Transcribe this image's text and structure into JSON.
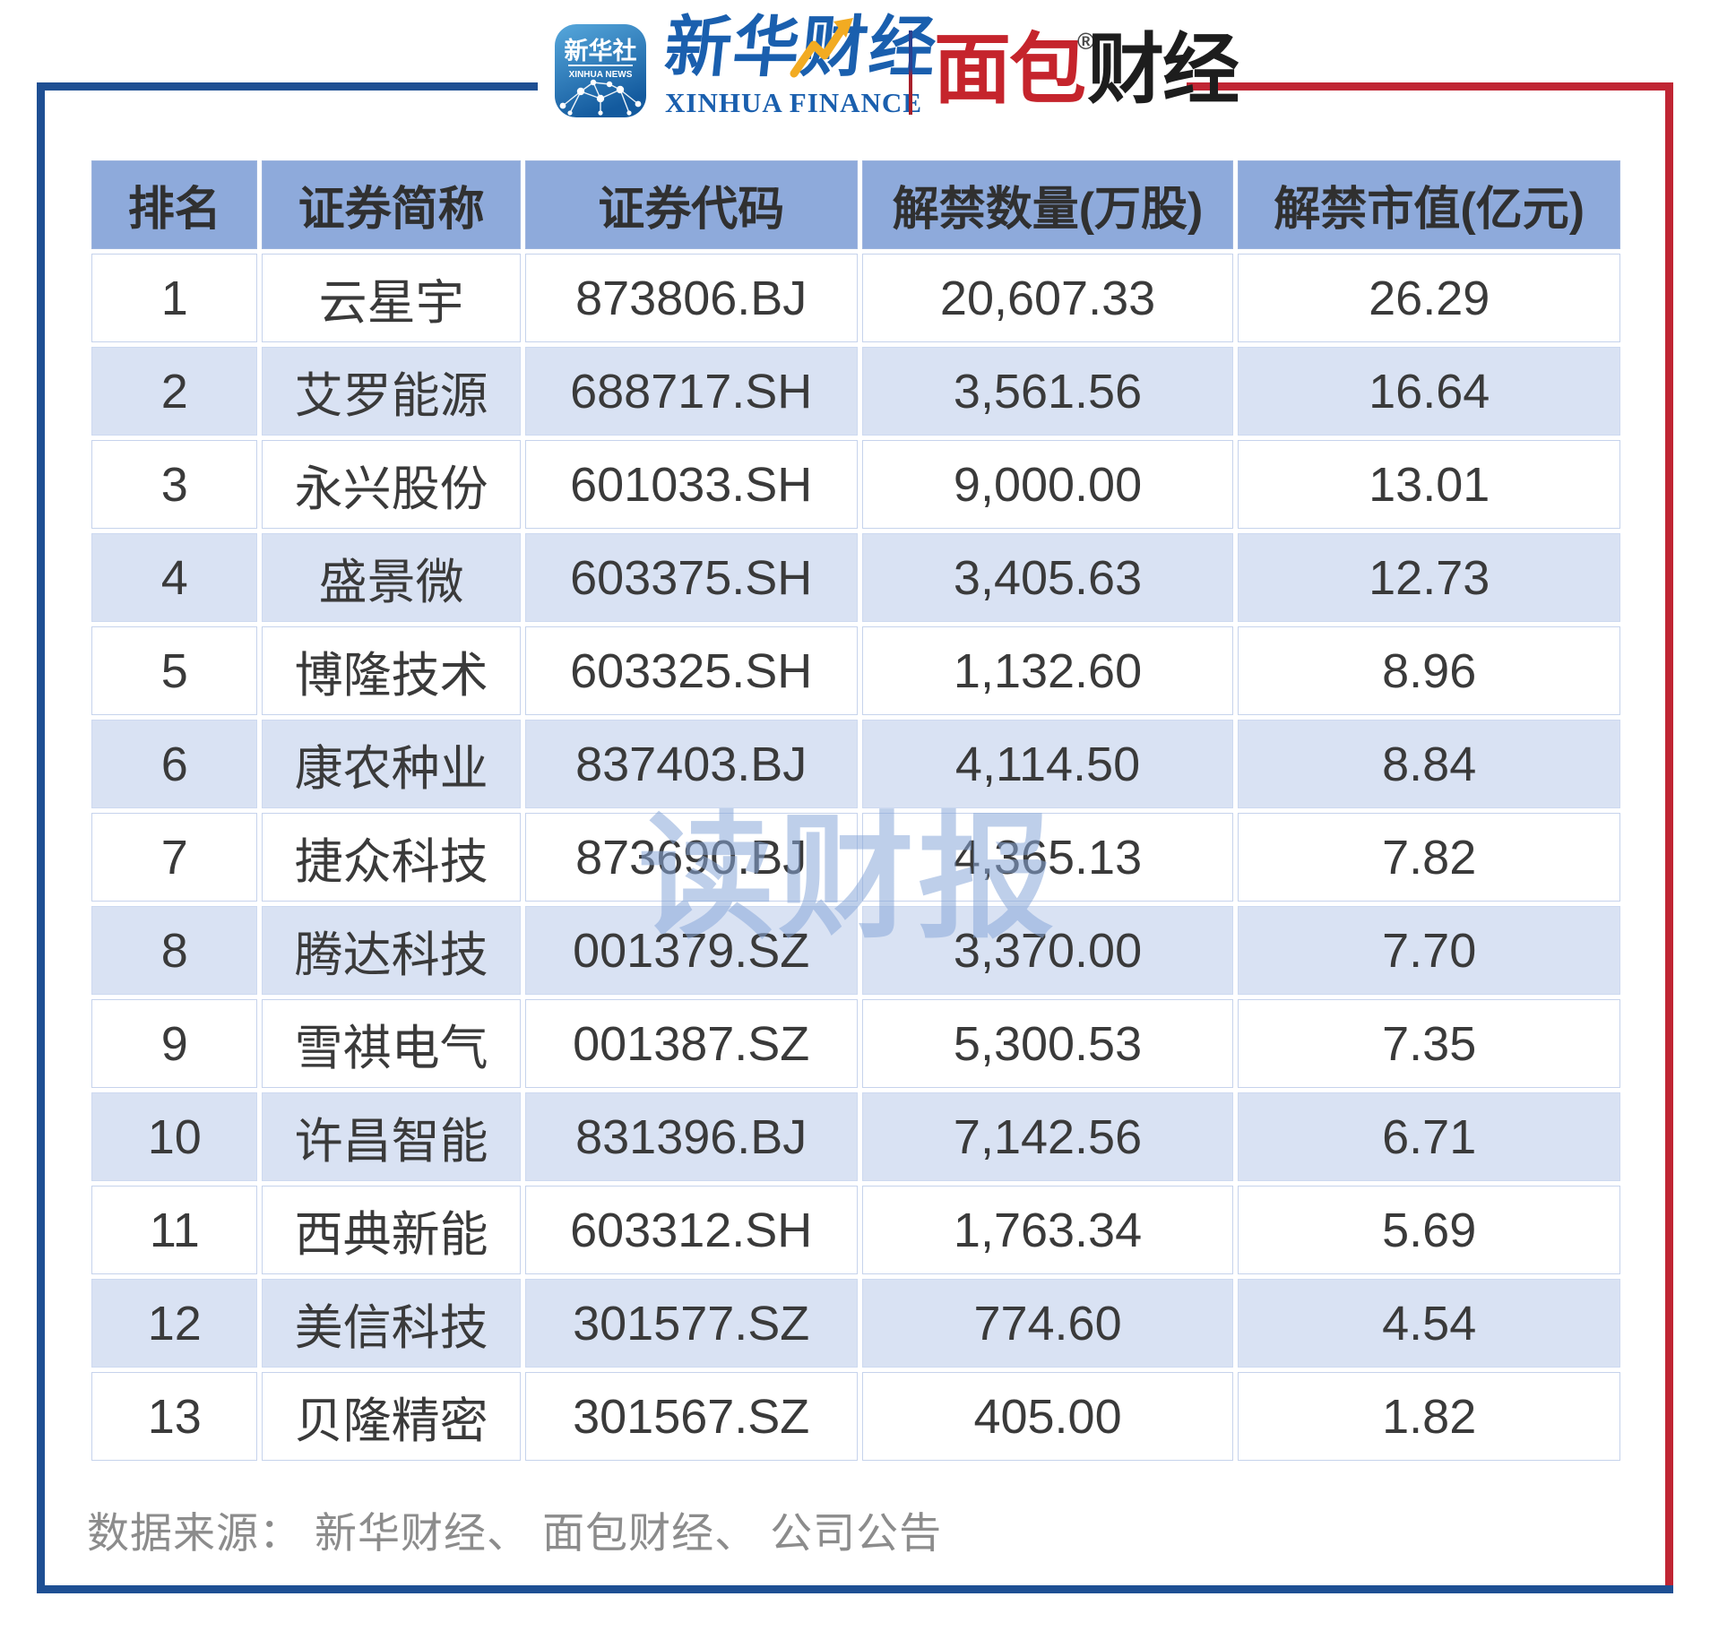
{
  "header": {
    "xinhua_icon": {
      "line1": "新华社",
      "line2": "XINHUA NEWS"
    },
    "xinhua_finance": {
      "cn": "新华财经",
      "en": "XINHUA FINANCE"
    },
    "bread_finance": {
      "cn_red": "面包",
      "cn_black": "财经",
      "reg": "®"
    }
  },
  "watermark": "读财报",
  "footer": {
    "source": "数据来源： 新华财经、 面包财经、 公司公告"
  },
  "colors": {
    "frame_blue": "#1e4f93",
    "frame_red": "#c02533",
    "header_bg": "#8eaadb",
    "row_alt_bg": "#d9e2f3",
    "xinhua_blue": "#1a5fae",
    "bread_red": "#c5242c",
    "text": "#3a3a3a",
    "footer_text": "#8c8c8c",
    "watermark": "rgba(136,168,216,0.55)"
  },
  "chart_data": {
    "type": "table",
    "columns": [
      "排名",
      "证券简称",
      "证券代码",
      "解禁数量(万股)",
      "解禁市值(亿元)"
    ],
    "rows": [
      {
        "rank": "1",
        "name": "云星宇",
        "code": "873806.BJ",
        "qty": "20,607.33",
        "value": "26.29"
      },
      {
        "rank": "2",
        "name": "艾罗能源",
        "code": "688717.SH",
        "qty": "3,561.56",
        "value": "16.64"
      },
      {
        "rank": "3",
        "name": "永兴股份",
        "code": "601033.SH",
        "qty": "9,000.00",
        "value": "13.01"
      },
      {
        "rank": "4",
        "name": "盛景微",
        "code": "603375.SH",
        "qty": "3,405.63",
        "value": "12.73"
      },
      {
        "rank": "5",
        "name": "博隆技术",
        "code": "603325.SH",
        "qty": "1,132.60",
        "value": "8.96"
      },
      {
        "rank": "6",
        "name": "康农种业",
        "code": "837403.BJ",
        "qty": "4,114.50",
        "value": "8.84"
      },
      {
        "rank": "7",
        "name": "捷众科技",
        "code": "873690.BJ",
        "qty": "4,365.13",
        "value": "7.82"
      },
      {
        "rank": "8",
        "name": "腾达科技",
        "code": "001379.SZ",
        "qty": "3,370.00",
        "value": "7.70"
      },
      {
        "rank": "9",
        "name": "雪祺电气",
        "code": "001387.SZ",
        "qty": "5,300.53",
        "value": "7.35"
      },
      {
        "rank": "10",
        "name": "许昌智能",
        "code": "831396.BJ",
        "qty": "7,142.56",
        "value": "6.71"
      },
      {
        "rank": "11",
        "name": "西典新能",
        "code": "603312.SH",
        "qty": "1,763.34",
        "value": "5.69"
      },
      {
        "rank": "12",
        "name": "美信科技",
        "code": "301577.SZ",
        "qty": "774.60",
        "value": "4.54"
      },
      {
        "rank": "13",
        "name": "贝隆精密",
        "code": "301567.SZ",
        "qty": "405.00",
        "value": "1.82"
      }
    ]
  }
}
